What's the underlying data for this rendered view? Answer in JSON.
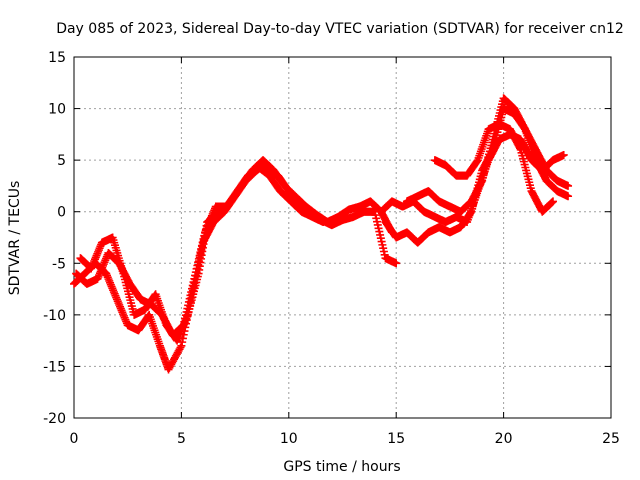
{
  "chart_data": {
    "type": "scatter",
    "title": "Day 085 of 2023, Sidereal Day-to-day VTEC variation (SDTVAR) for receiver cn12",
    "xlabel": "GPS time / hours",
    "ylabel": "SDTVAR / TECUs",
    "xlim": [
      0,
      25
    ],
    "ylim": [
      -20,
      15
    ],
    "xticks": [
      0,
      5,
      10,
      15,
      20,
      25
    ],
    "yticks": [
      -20,
      -15,
      -10,
      -5,
      0,
      5,
      10,
      15
    ],
    "xtick_labels": [
      "0",
      "5",
      "10",
      "15",
      "20",
      "25"
    ],
    "ytick_labels": [
      "-20",
      "-15",
      "-10",
      "-5",
      "0",
      "5",
      "10",
      "15"
    ],
    "grid": true,
    "marker": "+",
    "color": "#ff0000",
    "series": [
      {
        "name": "trace-1",
        "x": [
          0,
          0.5,
          1.0,
          1.5,
          2.0,
          2.5,
          3.0,
          3.5,
          4.0,
          4.4,
          5.0,
          5.5,
          6.0,
          6.5,
          7.0,
          7.5,
          8.0,
          8.5,
          8.8,
          9.5,
          10.0,
          10.5,
          11.0,
          11.5,
          12.0,
          12.5,
          13.0,
          13.5,
          14.0,
          14.5,
          15.0
        ],
        "y": [
          -7,
          -6,
          -5,
          -6,
          -8.5,
          -11,
          -11.5,
          -10,
          -13,
          -15.3,
          -13,
          -8,
          -3,
          -1,
          0,
          1.5,
          3,
          4,
          4.5,
          3.5,
          2,
          0.5,
          0,
          -0.8,
          -1.3,
          -0.8,
          -0.5,
          0,
          0,
          -4.5,
          -5
        ]
      },
      {
        "name": "trace-2",
        "x": [
          0.3,
          0.8,
          1.3,
          1.8,
          2.3,
          2.8,
          3.3,
          3.8,
          4.3,
          4.8,
          5.3,
          5.8,
          6.2,
          6.8,
          7.3,
          7.8,
          8.3,
          8.8,
          9.3,
          9.8,
          10.3,
          10.8,
          11.3,
          11.8,
          12.3,
          12.8,
          13.3,
          13.8,
          14.3,
          14.8
        ],
        "y": [
          -4.5,
          -5.5,
          -3,
          -2.5,
          -6,
          -10,
          -9.5,
          -8,
          -11,
          -12.5,
          -10,
          -6,
          -1,
          0,
          1,
          2.5,
          4,
          5,
          4,
          2.5,
          1.5,
          0.5,
          -0.3,
          -1,
          -0.5,
          0.2,
          0.5,
          1,
          0,
          -2
        ]
      },
      {
        "name": "trace-3",
        "x": [
          0.1,
          0.6,
          1.1,
          1.6,
          2.1,
          2.6,
          3.1,
          3.6,
          4.1,
          4.6,
          5.1,
          5.6,
          6.1,
          6.6,
          7.1,
          7.6,
          8.1,
          8.6,
          9.1,
          9.6,
          10.1,
          10.6,
          11.1,
          11.6
        ],
        "y": [
          -6,
          -7,
          -6.5,
          -4,
          -5,
          -7,
          -8.5,
          -9,
          -10,
          -12,
          -11,
          -6.5,
          -2,
          0.5,
          0.5,
          2,
          3.5,
          4.3,
          3.5,
          2,
          1,
          0,
          -0.5,
          -1
        ]
      },
      {
        "name": "trace-4",
        "x": [
          14.5,
          15.0,
          15.5,
          16.0,
          16.5,
          17.0,
          17.5,
          18.0,
          18.5,
          19.0,
          19.5,
          20.0,
          20.5,
          21.0,
          21.5,
          22.0,
          22.5,
          23.0
        ],
        "y": [
          -1,
          -2.5,
          -2,
          -3,
          -2,
          -1.5,
          -2,
          -1.5,
          0,
          4,
          6,
          10,
          9.5,
          8,
          5,
          3,
          2,
          1.5
        ]
      },
      {
        "name": "trace-5",
        "x": [
          14.3,
          14.8,
          15.3,
          15.8,
          16.3,
          16.8,
          17.3,
          17.8,
          18.3,
          18.8,
          19.3,
          19.8,
          20.3,
          20.8,
          21.3,
          21.8,
          22.3,
          22.8
        ],
        "y": [
          0,
          1,
          0.5,
          1,
          0,
          -0.5,
          -1,
          -0.5,
          -1,
          2,
          5,
          7,
          7.5,
          7,
          5,
          4,
          5,
          5.5
        ]
      },
      {
        "name": "trace-6",
        "x": [
          15.5,
          16.0,
          16.5,
          17.0,
          17.5,
          18.0,
          18.5,
          19.0,
          19.5,
          20.0,
          20.5,
          21.0,
          21.5,
          22.0,
          22.5,
          23.0
        ],
        "y": [
          1,
          1.5,
          2,
          1,
          0.5,
          0,
          1,
          3,
          7,
          11,
          10,
          8,
          6,
          4,
          3,
          2.5
        ]
      },
      {
        "name": "trace-7",
        "x": [
          16.8,
          17.3,
          17.8,
          18.3,
          18.8,
          19.3,
          19.8,
          20.3,
          20.8,
          21.3,
          21.8,
          22.3
        ],
        "y": [
          5,
          4.5,
          3.5,
          3.5,
          5,
          8,
          8.5,
          8,
          6,
          2,
          0,
          1
        ]
      }
    ]
  }
}
